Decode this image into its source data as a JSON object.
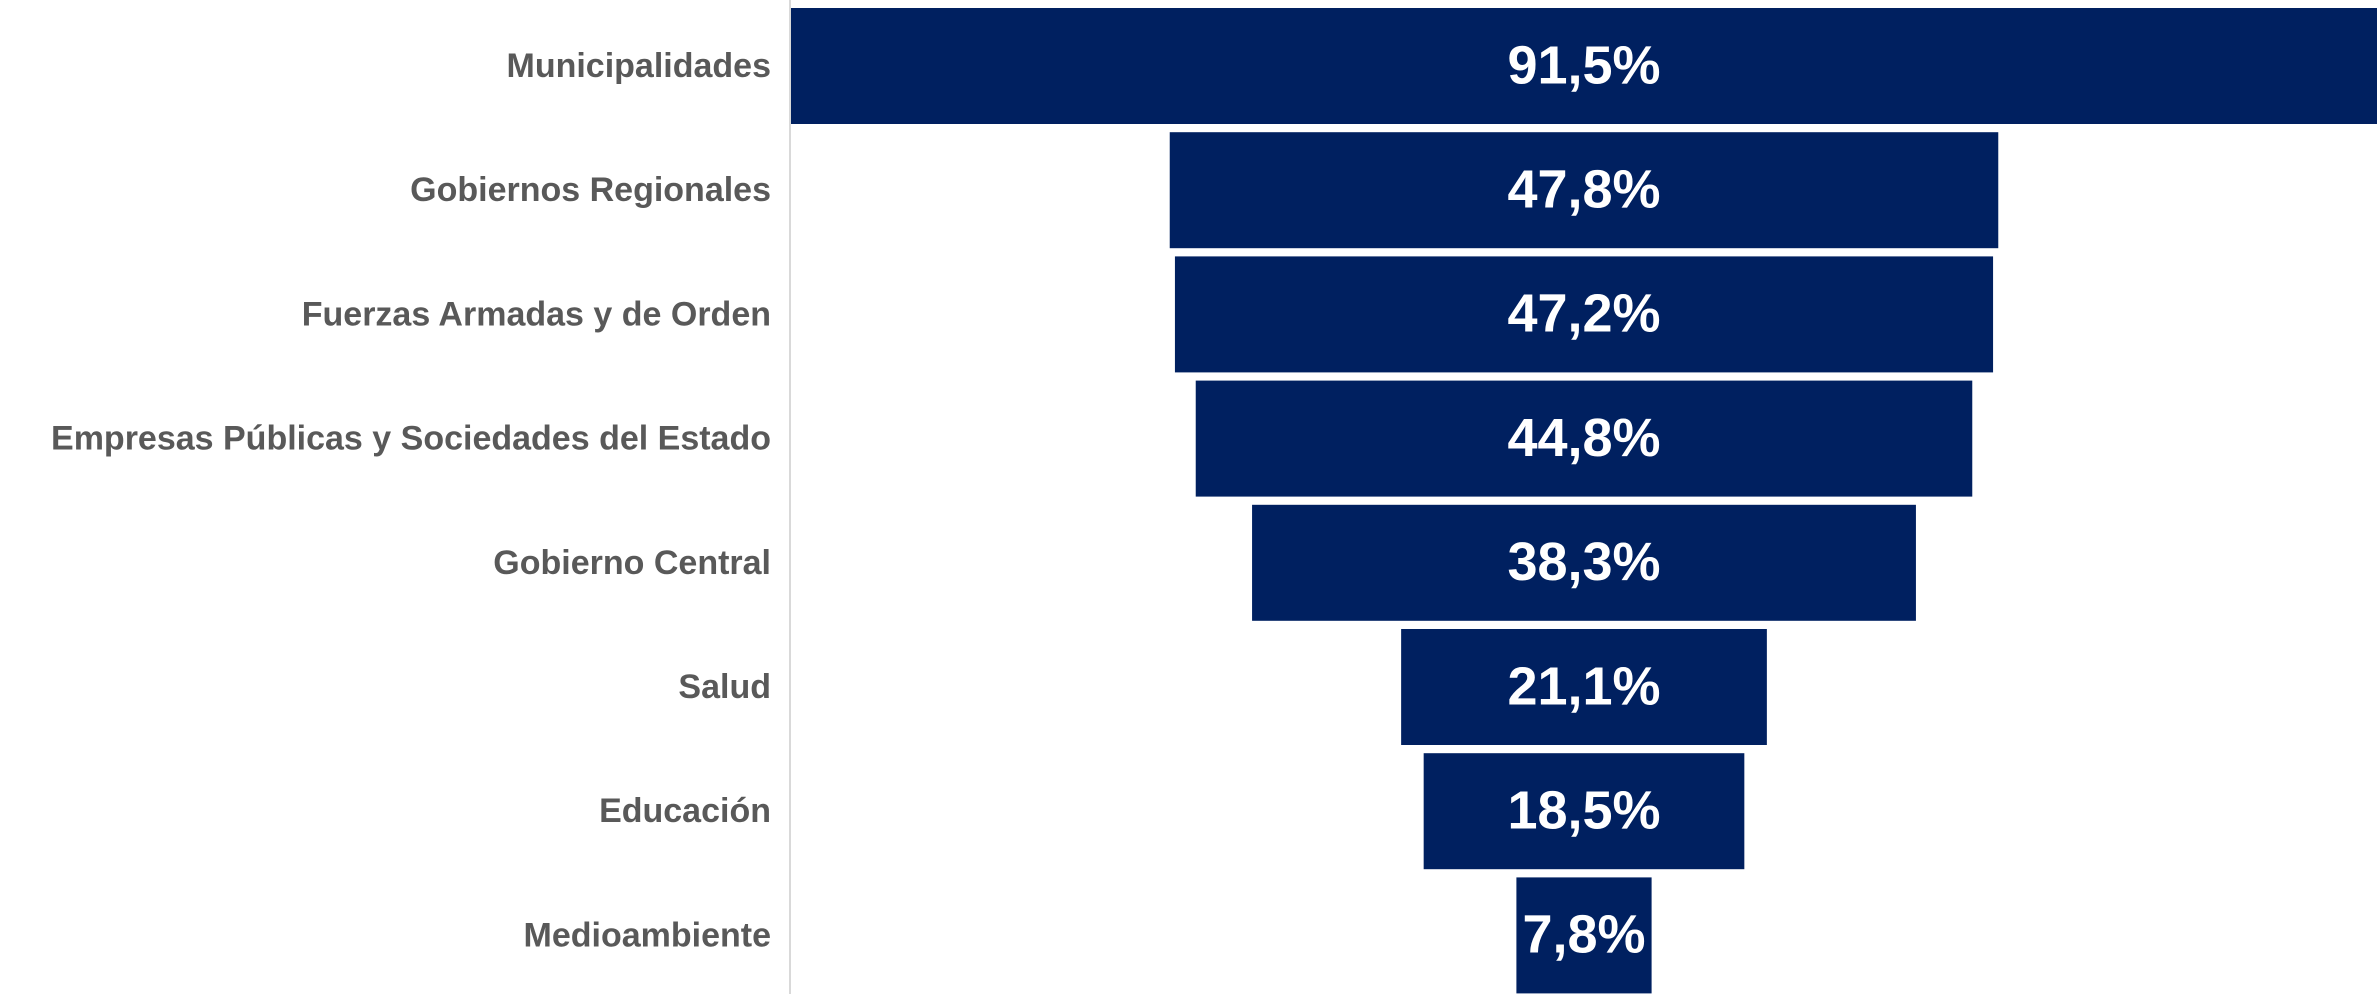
{
  "chart_data": {
    "type": "funnel",
    "categories": [
      "Municipalidades",
      "Gobiernos Regionales",
      "Fuerzas Armadas y de Orden",
      "Empresas Públicas y Sociedades del Estado",
      "Gobierno Central",
      "Salud",
      "Educación",
      "Medioambiente"
    ],
    "values": [
      91.5,
      47.8,
      47.2,
      44.8,
      38.3,
      21.1,
      18.5,
      7.8
    ],
    "value_labels": [
      "91,5%",
      "47,8%",
      "47,2%",
      "44,8%",
      "38,3%",
      "21,1%",
      "18,5%",
      "7,8%"
    ],
    "color": "#002060"
  }
}
